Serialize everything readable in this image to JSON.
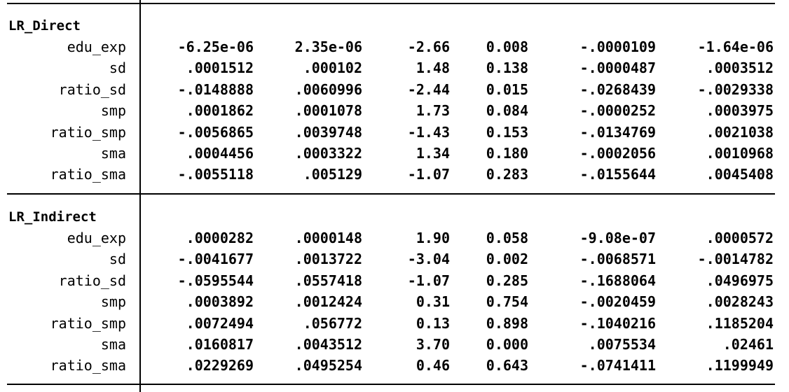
{
  "groups": [
    {
      "label": "LR_Direct",
      "rows": [
        {
          "var": "edu_exp",
          "values": [
            "-6.25e-06",
            "2.35e-06",
            "-2.66",
            "0.008",
            "-.0000109",
            "-1.64e-06"
          ]
        },
        {
          "var": "sd",
          "values": [
            ".0001512",
            ".000102",
            "1.48",
            "0.138",
            "-.0000487",
            ".0003512"
          ]
        },
        {
          "var": "ratio_sd",
          "values": [
            "-.0148888",
            ".0060996",
            "-2.44",
            "0.015",
            "-.0268439",
            "-.0029338"
          ]
        },
        {
          "var": "smp",
          "values": [
            ".0001862",
            ".0001078",
            "1.73",
            "0.084",
            "-.0000252",
            ".0003975"
          ]
        },
        {
          "var": "ratio_smp",
          "values": [
            "-.0056865",
            ".0039748",
            "-1.43",
            "0.153",
            "-.0134769",
            ".0021038"
          ]
        },
        {
          "var": "sma",
          "values": [
            ".0004456",
            ".0003322",
            "1.34",
            "0.180",
            "-.0002056",
            ".0010968"
          ]
        },
        {
          "var": "ratio_sma",
          "values": [
            "-.0055118",
            ".005129",
            "-1.07",
            "0.283",
            "-.0155644",
            ".0045408"
          ]
        }
      ]
    },
    {
      "label": "LR_Indirect",
      "rows": [
        {
          "var": "edu_exp",
          "values": [
            ".0000282",
            ".0000148",
            "1.90",
            "0.058",
            "-9.08e-07",
            ".0000572"
          ]
        },
        {
          "var": "sd",
          "values": [
            "-.0041677",
            ".0013722",
            "-3.04",
            "0.002",
            "-.0068571",
            "-.0014782"
          ]
        },
        {
          "var": "ratio_sd",
          "values": [
            "-.0595544",
            ".0557418",
            "-1.07",
            "0.285",
            "-.1688064",
            ".0496975"
          ]
        },
        {
          "var": "smp",
          "values": [
            ".0003892",
            ".0012424",
            "0.31",
            "0.754",
            "-.0020459",
            ".0028243"
          ]
        },
        {
          "var": "ratio_smp",
          "values": [
            ".0072494",
            ".056772",
            "0.13",
            "0.898",
            "-.1040216",
            ".1185204"
          ]
        },
        {
          "var": "sma",
          "values": [
            ".0160817",
            ".0043512",
            "3.70",
            "0.000",
            ".0075534",
            ".02461"
          ]
        },
        {
          "var": "ratio_sma",
          "values": [
            ".0229269",
            ".0495254",
            "0.46",
            "0.643",
            "-.0741411",
            ".1199949"
          ]
        }
      ]
    }
  ]
}
